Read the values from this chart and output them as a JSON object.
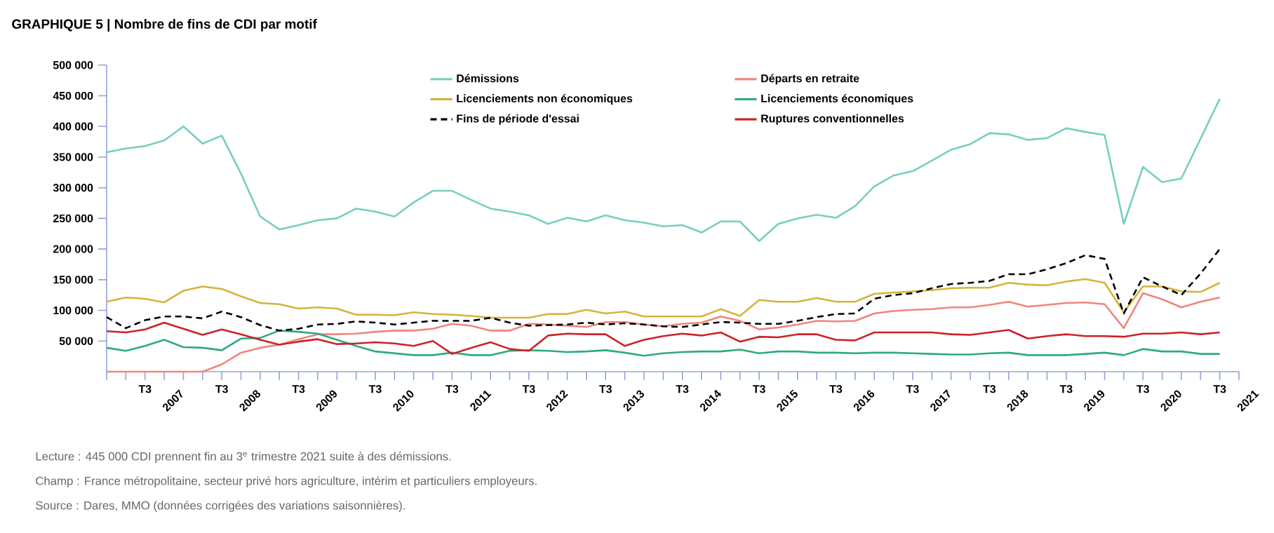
{
  "chart_data": {
    "type": "line",
    "title": "GRAPHIQUE 5 | Nombre de fins de CDI par motif",
    "categories": [
      null,
      null,
      "T3",
      null,
      null,
      null,
      "T3",
      null,
      null,
      null,
      "T3",
      null,
      null,
      null,
      "T3",
      null,
      null,
      null,
      "T3",
      null,
      null,
      null,
      "T3",
      null,
      null,
      null,
      "T3",
      null,
      null,
      null,
      "T3",
      null,
      null,
      null,
      "T3",
      null,
      null,
      null,
      "T3",
      null,
      null,
      null,
      "T3",
      null,
      null,
      null,
      "T3",
      null,
      null,
      null,
      "T3",
      null,
      null,
      null,
      "T3",
      null,
      null,
      null,
      "T3"
    ],
    "series": [
      {
        "name": "Démissions",
        "color": "#76cfc0",
        "line_style": "solid",
        "values": [
          358000,
          364000,
          368000,
          377000,
          400000,
          372000,
          385000,
          323000,
          253000,
          232000,
          239000,
          247000,
          250000,
          266000,
          261000,
          253000,
          276000,
          295000,
          295000,
          280000,
          266000,
          261000,
          255000,
          241000,
          251000,
          245000,
          255000,
          247000,
          243000,
          237000,
          239000,
          227000,
          245000,
          245000,
          213000,
          241000,
          250000,
          256000,
          251000,
          270000,
          302000,
          320000,
          327000,
          344000,
          362000,
          371000,
          389000,
          387000,
          378000,
          381000,
          397000,
          391000,
          386000,
          241000,
          334000,
          309000,
          315000,
          380000,
          445000
        ]
      },
      {
        "name": "Départs en retraite",
        "color": "#f0857d",
        "line_style": "solid",
        "values": [
          0,
          0,
          0,
          0,
          0,
          0,
          12000,
          31000,
          39000,
          44000,
          53000,
          61000,
          61000,
          62000,
          65000,
          67000,
          67000,
          70000,
          78000,
          75000,
          67000,
          67000,
          78000,
          77000,
          75000,
          73000,
          81000,
          81000,
          77000,
          74000,
          78000,
          80000,
          90000,
          83000,
          69000,
          72000,
          77000,
          83000,
          82000,
          83000,
          95000,
          99000,
          101000,
          102000,
          105000,
          105000,
          109000,
          114000,
          106000,
          109000,
          112000,
          113000,
          110000,
          71000,
          128000,
          118000,
          105000,
          114000,
          121000
        ]
      },
      {
        "name": "Licenciements non économiques",
        "color": "#d4b43c",
        "line_style": "solid",
        "values": [
          114000,
          121000,
          119000,
          113000,
          132000,
          139000,
          135000,
          123000,
          112000,
          110000,
          103000,
          105000,
          103000,
          93000,
          93000,
          92000,
          97000,
          94000,
          93000,
          91000,
          88000,
          88000,
          88000,
          94000,
          94000,
          101000,
          95000,
          98000,
          90000,
          90000,
          90000,
          90000,
          102000,
          91000,
          117000,
          114000,
          114000,
          120000,
          114000,
          114000,
          127000,
          129000,
          131000,
          133000,
          136000,
          137000,
          137000,
          145000,
          142000,
          141000,
          147000,
          151000,
          145000,
          97000,
          139000,
          139000,
          131000,
          130000,
          145000
        ]
      },
      {
        "name": "Licenciements économiques",
        "color": "#2eaa80",
        "line_style": "solid",
        "values": [
          39000,
          34000,
          42000,
          52000,
          40000,
          39000,
          35000,
          54000,
          55000,
          67000,
          65000,
          62000,
          52000,
          42000,
          33000,
          30000,
          27000,
          27000,
          31000,
          27000,
          27000,
          34000,
          35000,
          34000,
          32000,
          33000,
          35000,
          31000,
          26000,
          30000,
          32000,
          33000,
          33000,
          36000,
          30000,
          33000,
          33000,
          31000,
          31000,
          30000,
          31000,
          31000,
          30000,
          29000,
          28000,
          28000,
          30000,
          31000,
          27000,
          27000,
          27000,
          29000,
          31000,
          27000,
          37000,
          33000,
          33000,
          29000,
          29000
        ]
      },
      {
        "name": "Fins de période d'essai",
        "color": "#000000",
        "line_style": "dashed",
        "values": [
          89000,
          71000,
          84000,
          90000,
          90000,
          87000,
          98000,
          89000,
          76000,
          67000,
          70000,
          77000,
          78000,
          82000,
          80000,
          77000,
          80000,
          83000,
          83000,
          83000,
          88000,
          80000,
          75000,
          76000,
          77000,
          80000,
          77000,
          79000,
          77000,
          74000,
          73000,
          77000,
          81000,
          80000,
          78000,
          78000,
          83000,
          89000,
          94000,
          95000,
          119000,
          125000,
          128000,
          136000,
          143000,
          145000,
          148000,
          159000,
          159000,
          167000,
          177000,
          190000,
          184000,
          95000,
          154000,
          139000,
          125000,
          160000,
          200000
        ]
      },
      {
        "name": "Ruptures conventionnelles",
        "color": "#cc2229",
        "line_style": "solid",
        "values": [
          66000,
          64000,
          69000,
          80000,
          70000,
          60000,
          69000,
          61000,
          52000,
          44000,
          49000,
          53000,
          45000,
          46000,
          48000,
          46000,
          42000,
          50000,
          29000,
          39000,
          48000,
          37000,
          34000,
          59000,
          62000,
          61000,
          61000,
          42000,
          52000,
          58000,
          62000,
          59000,
          64000,
          49000,
          57000,
          56000,
          61000,
          61000,
          52000,
          51000,
          64000,
          64000,
          64000,
          64000,
          61000,
          60000,
          64000,
          68000,
          54000,
          58000,
          61000,
          58000,
          58000,
          57000,
          62000,
          62000,
          64000,
          61000,
          64000
        ]
      }
    ],
    "ylim": [
      0,
      500000
    ],
    "yticks": [
      {
        "value": 50000,
        "label": "50 000"
      },
      {
        "value": 100000,
        "label": "100 000"
      },
      {
        "value": 150000,
        "label": "150 000"
      },
      {
        "value": 200000,
        "label": "200 000"
      },
      {
        "value": 250000,
        "label": "250 000"
      },
      {
        "value": 300000,
        "label": "300 000"
      },
      {
        "value": 350000,
        "label": "350 000"
      },
      {
        "value": 400000,
        "label": "400 000"
      },
      {
        "value": 450000,
        "label": "450 000"
      },
      {
        "value": 500000,
        "label": "500 000"
      }
    ],
    "legend": "top",
    "annotations": [
      "2007",
      "2008",
      "2009",
      "2010",
      "2011",
      "2012",
      "2013",
      "2014",
      "2015",
      "2016",
      "2017",
      "2018",
      "2019",
      "2020",
      "2021",
      "Lecture : 445 000 CDI prennent fin au 3$^{e}$ trimestre 2021 suite à des démissions.",
      "Champ : France métropolitaine, secteur privé hors agriculture, intérim et particuliers employeurs.",
      "Source : Dares, MMO (données corrigées des variations saisonnières)."
    ]
  }
}
